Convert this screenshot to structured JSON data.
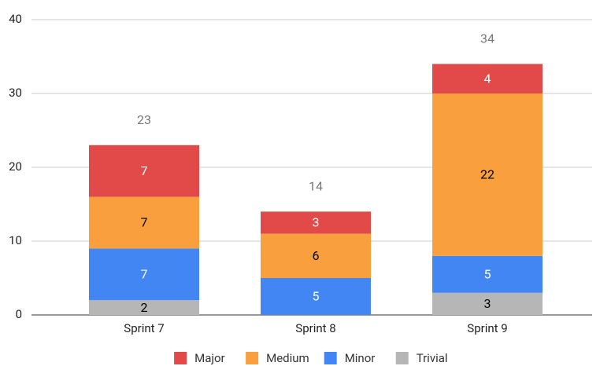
{
  "chart_data": {
    "type": "stacked_bar",
    "categories": [
      "Sprint 7",
      "Sprint 8",
      "Sprint 9"
    ],
    "series": [
      {
        "name": "Major",
        "color": "#e24a4a",
        "label_color": "#ffffff",
        "values": [
          7,
          3,
          4
        ]
      },
      {
        "name": "Medium",
        "color": "#fa9f3d",
        "label_color": "#000000",
        "values": [
          7,
          6,
          22
        ]
      },
      {
        "name": "Minor",
        "color": "#4286f3",
        "label_color": "#ffffff",
        "values": [
          7,
          5,
          5
        ]
      },
      {
        "name": "Trivial",
        "color": "#b6b6b6",
        "label_color": "#000000",
        "values": [
          2,
          null,
          3
        ]
      }
    ],
    "totals": [
      23,
      14,
      34
    ],
    "ylim": [
      0,
      40
    ],
    "yticks": [
      0,
      10,
      20,
      30,
      40
    ],
    "grid": true,
    "legend": "bottom"
  }
}
